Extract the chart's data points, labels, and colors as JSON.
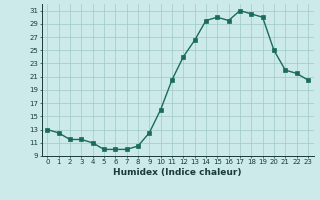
{
  "x": [
    0,
    1,
    2,
    3,
    4,
    5,
    6,
    7,
    8,
    9,
    10,
    11,
    12,
    13,
    14,
    15,
    16,
    17,
    18,
    19,
    20,
    21,
    22,
    23
  ],
  "y": [
    13,
    12.5,
    11.5,
    11.5,
    11,
    10,
    10,
    10,
    10.5,
    12.5,
    16,
    20.5,
    24,
    26.5,
    29.5,
    30,
    29.5,
    31,
    30.5,
    30,
    25,
    22,
    21.5,
    20.5
  ],
  "line_color": "#1a6b5c",
  "marker_color": "#1a6b5c",
  "bg_color": "#cceaea",
  "grid_color": "#a0c8c8",
  "xlabel": "Humidex (Indice chaleur)",
  "ylim": [
    9,
    32
  ],
  "xlim": [
    -0.5,
    23.5
  ],
  "yticks": [
    9,
    11,
    13,
    15,
    17,
    19,
    21,
    23,
    25,
    27,
    29,
    31
  ],
  "xticks": [
    0,
    1,
    2,
    3,
    4,
    5,
    6,
    7,
    8,
    9,
    10,
    11,
    12,
    13,
    14,
    15,
    16,
    17,
    18,
    19,
    20,
    21,
    22,
    23
  ],
  "xtick_labels": [
    "0",
    "1",
    "2",
    "3",
    "4",
    "5",
    "6",
    "7",
    "8",
    "9",
    "10",
    "11",
    "12",
    "13",
    "14",
    "15",
    "16",
    "17",
    "18",
    "19",
    "20",
    "21",
    "22",
    "23"
  ]
}
